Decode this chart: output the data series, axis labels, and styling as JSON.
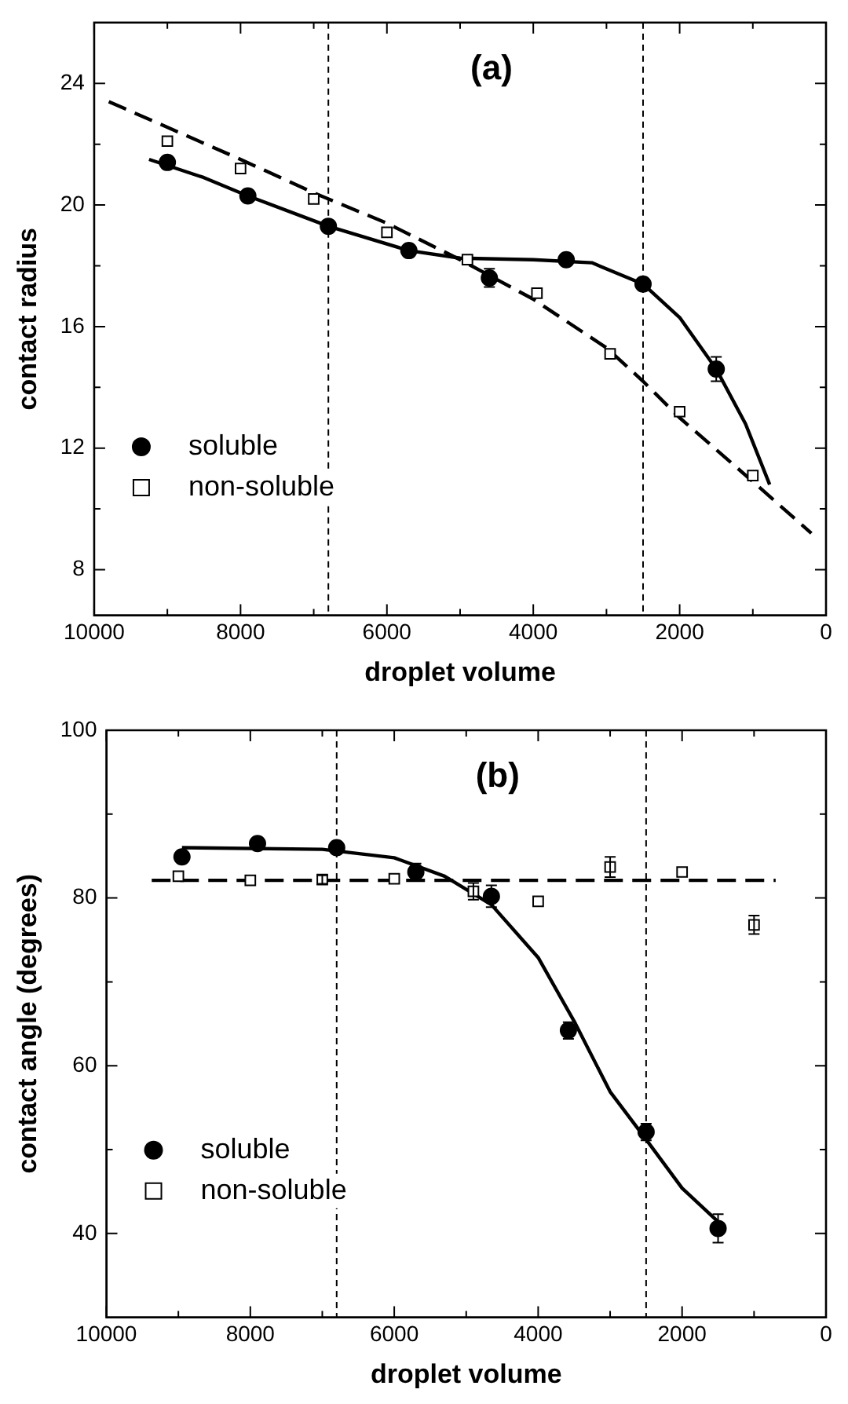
{
  "chart_data": [
    {
      "type": "scatter",
      "title": "(a)",
      "xlabel": "droplet volume",
      "ylabel": "contact radius",
      "xlim": [
        10000,
        0
      ],
      "xticks": [
        10000,
        {
          "value": 9000,
          "label": null
        },
        8000,
        {
          "value": 7000,
          "label": null
        },
        6000,
        {
          "value": 5000,
          "label": null
        },
        4000,
        {
          "value": 3000,
          "label": null
        },
        2000,
        {
          "value": 1000,
          "label": null
        },
        0
      ],
      "ylim": [
        6.5,
        26
      ],
      "yticks": [
        8,
        {
          "value": 10,
          "label": null
        },
        12,
        {
          "value": 14,
          "label": null
        },
        16,
        {
          "value": 18,
          "label": null
        },
        20,
        {
          "value": 22,
          "label": null
        },
        24
      ],
      "grid": false,
      "legend": "bottom left",
      "ref_lines": [
        {
          "axis": "x",
          "value": 6800,
          "line_style": "dashed"
        },
        {
          "axis": "x",
          "value": 2500,
          "line_style": "dashed"
        }
      ],
      "series": [
        {
          "name": "soluble",
          "type": "scatter",
          "marker": "circle",
          "color": "#000000",
          "x": [
            9000,
            7900,
            6800,
            5700,
            4600,
            3550,
            2500,
            1500
          ],
          "values": [
            21.4,
            20.3,
            19.3,
            18.5,
            17.6,
            18.2,
            17.4,
            14.6
          ],
          "errors": [
            null,
            null,
            null,
            null,
            0.3,
            null,
            null,
            0.4
          ]
        },
        {
          "name": "non-soluble",
          "type": "scatter",
          "marker": "square",
          "color": "#000000",
          "x": [
            9000,
            8000,
            7000,
            6000,
            4900,
            3950,
            2950,
            2000,
            1000
          ],
          "values": [
            22.1,
            21.2,
            20.2,
            19.1,
            18.2,
            17.1,
            15.1,
            13.2,
            11.1
          ]
        },
        {
          "type": "line",
          "marker": "none",
          "line_style": "solid",
          "color": "#000000",
          "x": [
            9250,
            8500,
            7900,
            6800,
            5700,
            5000,
            4000,
            3200,
            2500,
            2000,
            1500,
            1100,
            770
          ],
          "values": [
            21.5,
            20.9,
            20.3,
            19.3,
            18.5,
            18.25,
            18.2,
            18.1,
            17.4,
            16.3,
            14.6,
            12.8,
            10.8
          ]
        },
        {
          "type": "line",
          "marker": "none",
          "line_style": "dashed",
          "color": "#000000",
          "x": [
            9800,
            8000,
            7000,
            6000,
            5000,
            4000,
            3000,
            2500,
            2000,
            1000,
            200
          ],
          "values": [
            23.4,
            21.5,
            20.4,
            19.4,
            18.2,
            16.9,
            15.3,
            14.2,
            13.0,
            10.9,
            9.2
          ]
        }
      ]
    },
    {
      "type": "scatter",
      "title": "(b)",
      "xlabel": "droplet volume",
      "ylabel": "contact angle (degrees)",
      "xlim": [
        10000,
        0
      ],
      "xticks": [
        10000,
        {
          "value": 9000,
          "label": null
        },
        8000,
        {
          "value": 7000,
          "label": null
        },
        6000,
        {
          "value": 5000,
          "label": null
        },
        4000,
        {
          "value": 3000,
          "label": null
        },
        2000,
        {
          "value": 1000,
          "label": null
        },
        0
      ],
      "ylim": [
        30,
        100
      ],
      "yticks": [
        40,
        {
          "value": 50,
          "label": null
        },
        60,
        {
          "value": 70,
          "label": null
        },
        80,
        {
          "value": 90,
          "label": null
        },
        100
      ],
      "grid": false,
      "legend": "bottom left",
      "ref_lines": [
        {
          "axis": "x",
          "value": 6800,
          "line_style": "dashed"
        },
        {
          "axis": "x",
          "value": 2500,
          "line_style": "dashed"
        }
      ],
      "series": [
        {
          "name": "soluble",
          "type": "scatter",
          "marker": "circle",
          "color": "#000000",
          "x": [
            8950,
            7900,
            6800,
            5700,
            4650,
            3580,
            2500,
            1500
          ],
          "values": [
            84.9,
            86.5,
            86.0,
            83.1,
            80.2,
            64.2,
            52.1,
            40.6
          ],
          "errors": [
            null,
            null,
            null,
            1.0,
            1.3,
            1.0,
            1.0,
            1.7
          ]
        },
        {
          "name": "non-soluble",
          "type": "scatter",
          "marker": "square",
          "color": "#000000",
          "x": [
            9000,
            8000,
            7000,
            6000,
            4900,
            4000,
            3000,
            2000,
            1000
          ],
          "values": [
            82.6,
            82.1,
            82.2,
            82.3,
            80.8,
            79.6,
            83.7,
            83.1,
            76.8
          ],
          "errors": [
            null,
            null,
            0.5,
            null,
            1.0,
            null,
            1.2,
            null,
            1.1
          ]
        },
        {
          "type": "line",
          "marker": "none",
          "line_style": "solid",
          "color": "#000000",
          "x": [
            8950,
            7000,
            6000,
            5300,
            4650,
            4000,
            3500,
            3000,
            2500,
            2000,
            1500
          ],
          "values": [
            86.0,
            85.8,
            84.8,
            82.6,
            79.2,
            72.9,
            65.3,
            56.9,
            51.2,
            45.4,
            41.4
          ]
        },
        {
          "type": "line",
          "marker": "none",
          "line_style": "dashed",
          "color": "#000000",
          "x": [
            9370,
            700
          ],
          "values": [
            82.1,
            82.1
          ]
        }
      ]
    }
  ]
}
